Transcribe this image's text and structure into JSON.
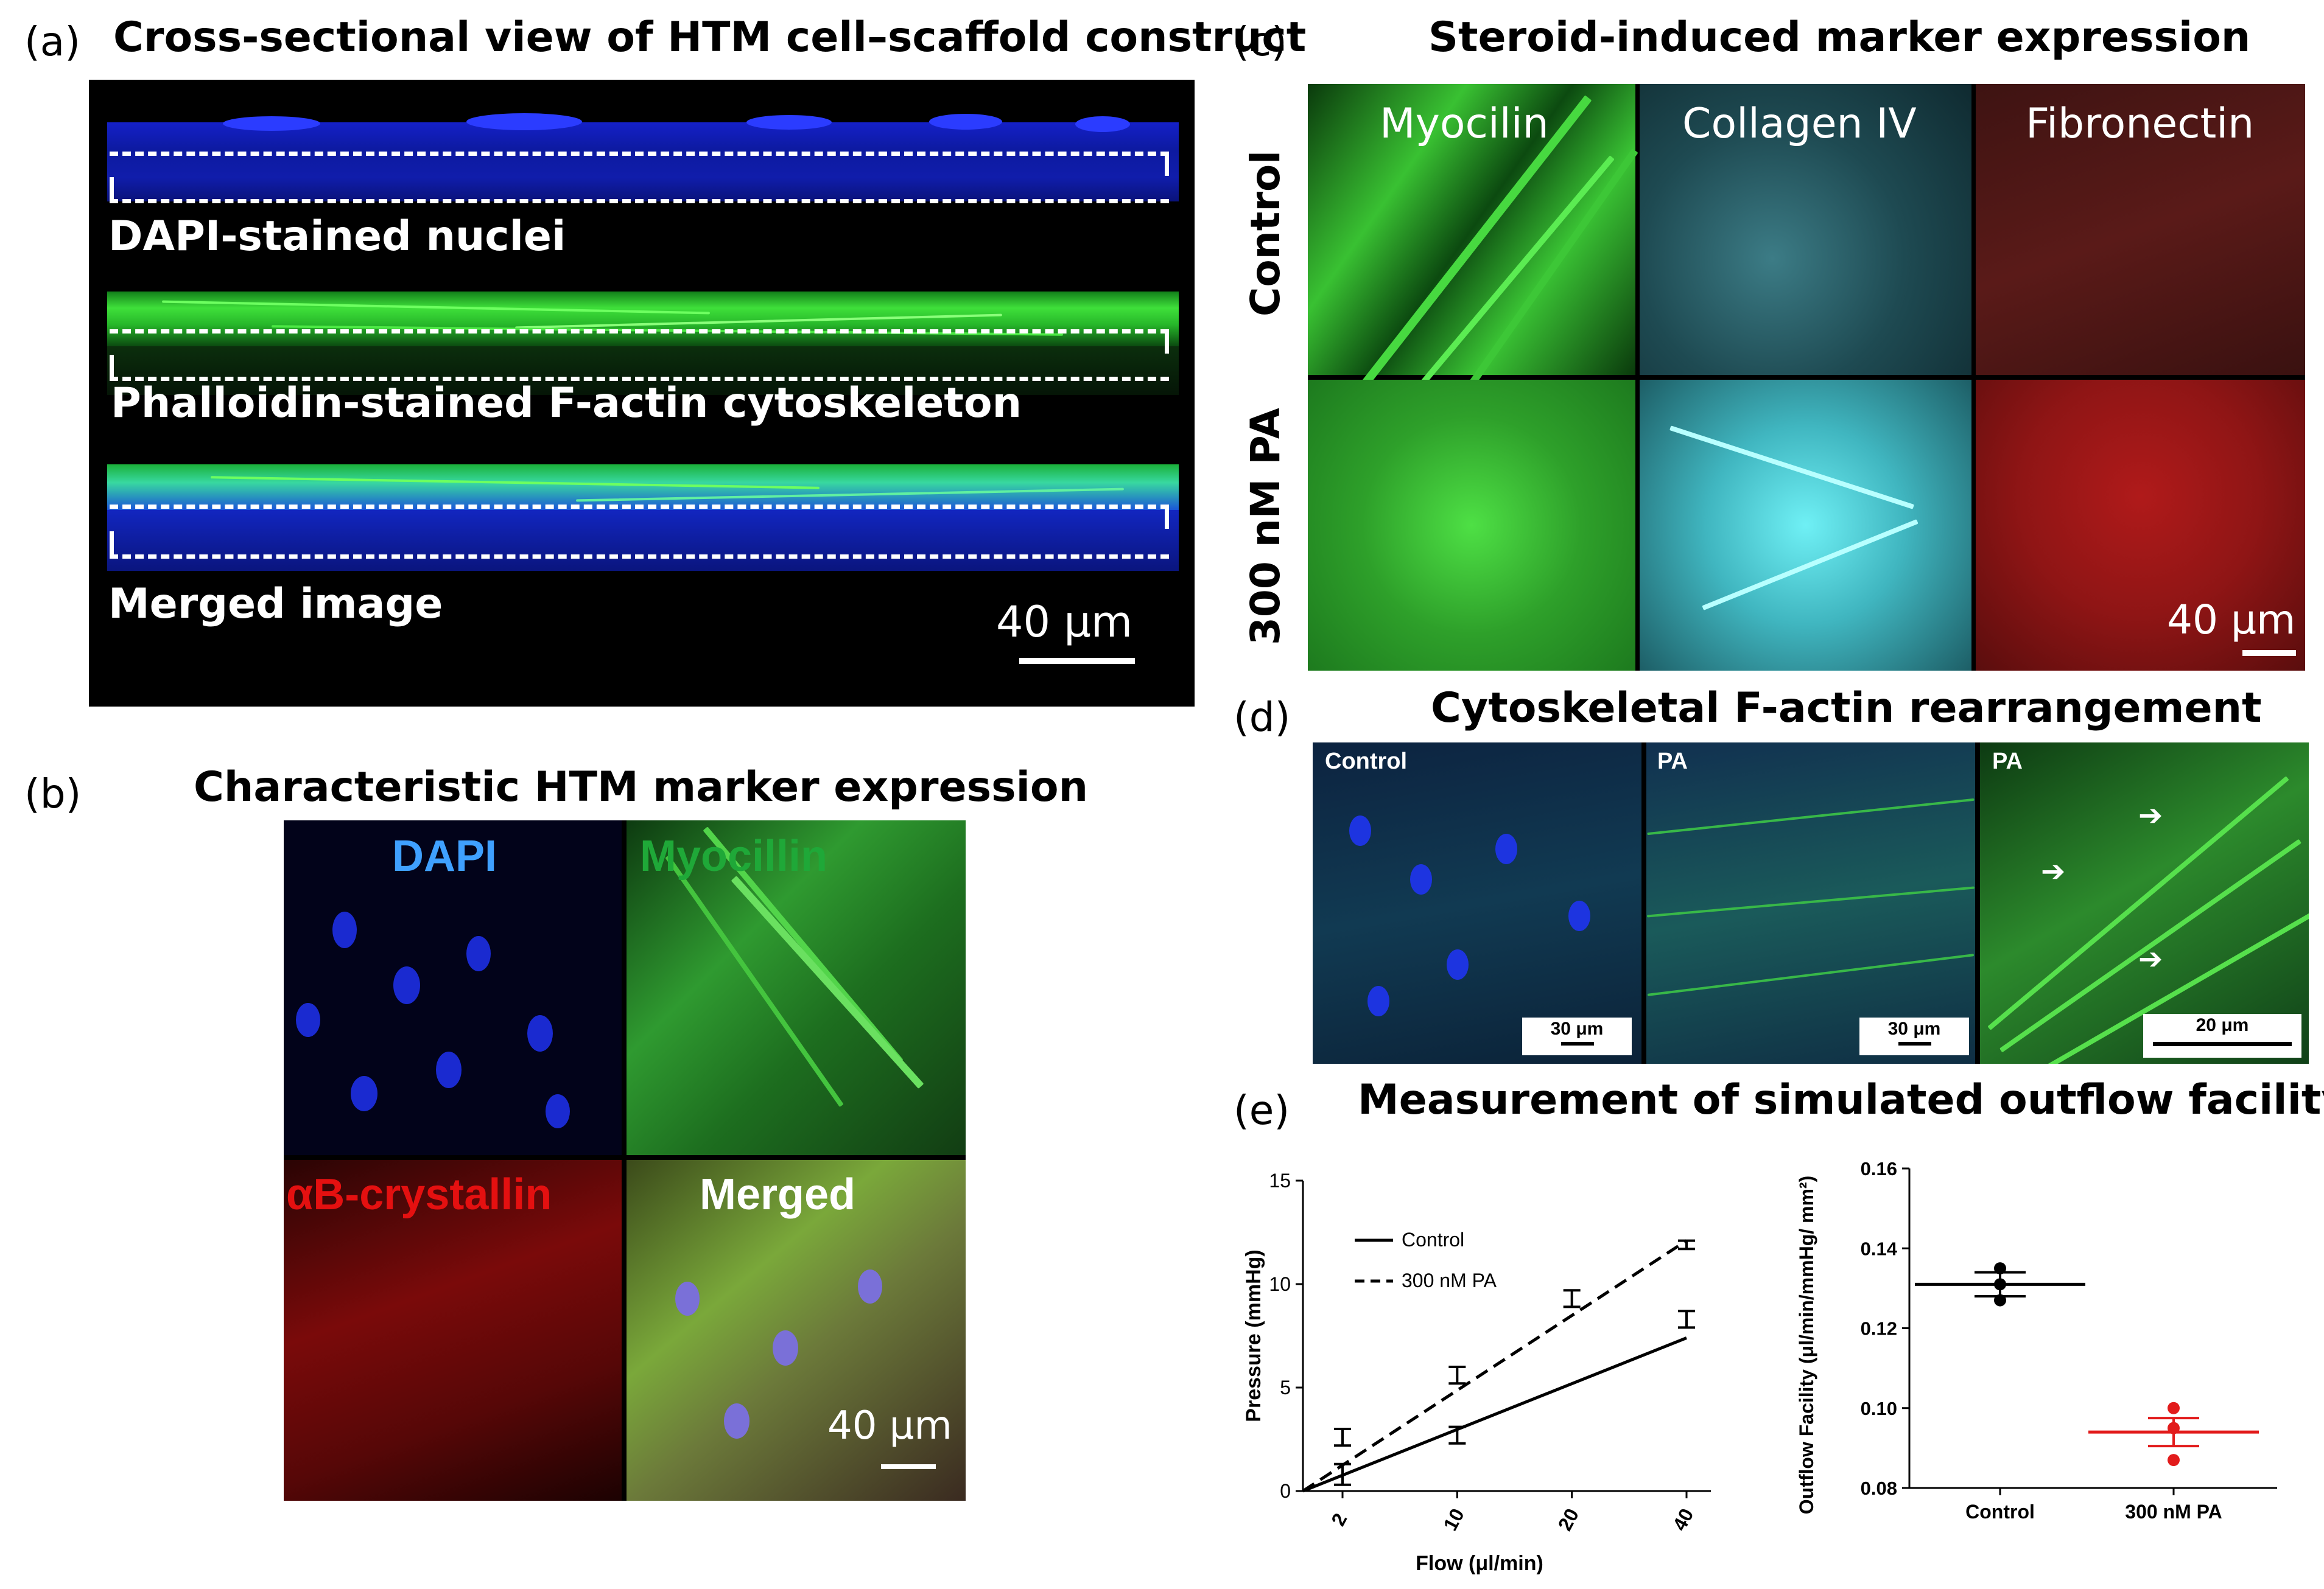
{
  "colors": {
    "dapi_blue": "#1f3de8",
    "actin_green": "#39d633",
    "cyan": "#5fdde6",
    "fibronectin_red": "#a01818",
    "crystallin_red": "#d01010",
    "control_errorbar": "#000000",
    "pa_line": "#e21b1b"
  },
  "panel_a": {
    "label": "(a)",
    "title": "Cross-sectional view of HTM cell–scaffold construct",
    "rows": [
      {
        "caption": "DAPI-stained nuclei"
      },
      {
        "caption": "Phalloidin-stained F-actin cytoskeleton"
      },
      {
        "caption": "Merged image"
      }
    ],
    "scale": "40 μm"
  },
  "panel_b": {
    "label": "(b)",
    "title": "Characteristic HTM marker expression",
    "quadrants": [
      "DAPI",
      "Myocillin",
      "αB-crystallin",
      "Merged"
    ],
    "scale": "40 μm"
  },
  "panel_c": {
    "label": "(c)",
    "title": "Steroid-induced marker expression",
    "columns": [
      "Myocilin",
      "Collagen IV",
      "Fibronectin"
    ],
    "rows": [
      "Control",
      "300 nM PA"
    ],
    "scale": "40 μm"
  },
  "panel_d": {
    "label": "(d)",
    "title": "Cytoskeletal F-actin rearrangement",
    "images": [
      {
        "label": "Control",
        "scale": "30 μm"
      },
      {
        "label": "PA",
        "scale": "30 μm"
      },
      {
        "label": "PA",
        "scale": "20 μm"
      }
    ]
  },
  "panel_e": {
    "label": "(e)",
    "title": "Measurement of simulated outflow facility"
  },
  "chart_data": [
    {
      "type": "line",
      "xlabel": "Flow (μl/min)",
      "ylabel": "Pressure (mmHg)",
      "x_categories": [
        "2",
        "10",
        "20",
        "40"
      ],
      "ylim": [
        0,
        15
      ],
      "yticks": [
        "0",
        "5",
        "10",
        "15"
      ],
      "legend_position": "top-left",
      "series": [
        {
          "name": "Control",
          "style": "solid",
          "values": [
            0.8,
            2.7,
            null,
            8.3
          ],
          "errors": [
            0.5,
            0.4,
            null,
            0.4
          ],
          "fit": [
            0,
            7.4
          ]
        },
        {
          "name": "300 nM PA",
          "style": "dashed",
          "values": [
            2.6,
            5.6,
            9.3,
            11.9
          ],
          "errors": [
            0.4,
            0.4,
            0.4,
            0.2
          ],
          "fit": [
            0,
            12.1
          ]
        }
      ]
    },
    {
      "type": "scatter",
      "xlabel": "",
      "ylabel": "Outflow Facility (μl/min/mmHg/ mm²)",
      "categories": [
        "Control",
        "300 nM PA"
      ],
      "ylim": [
        0.08,
        0.16
      ],
      "yticks": [
        "0.08",
        "0.10",
        "0.12",
        "0.14",
        "0.16"
      ],
      "series": [
        {
          "name": "Control",
          "points": [
            0.135,
            0.131,
            0.127
          ],
          "mean": 0.131,
          "sem": 0.003
        },
        {
          "name": "300 nM PA",
          "points": [
            0.1,
            0.095,
            0.087
          ],
          "mean": 0.094,
          "sem": 0.0035
        }
      ]
    }
  ]
}
